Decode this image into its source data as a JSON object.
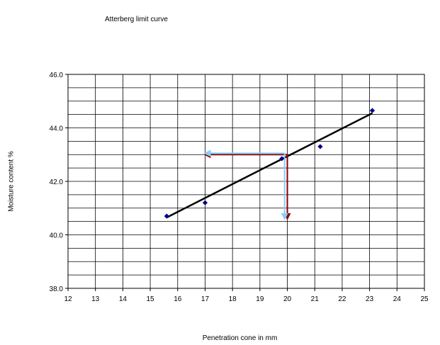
{
  "chart_data": {
    "type": "scatter",
    "title": "Atterberg limit curve",
    "xlabel": "Penetration cone in mm",
    "ylabel": "Moisture content %",
    "xlim": [
      12,
      25
    ],
    "ylim": [
      38.0,
      46.0
    ],
    "x_ticks": [
      "12",
      "13",
      "14",
      "15",
      "16",
      "17",
      "18",
      "19",
      "20",
      "21",
      "22",
      "23",
      "24",
      "25"
    ],
    "y_ticks": [
      "38.0",
      "40.0",
      "42.0",
      "44.0",
      "46.0"
    ],
    "grid": true,
    "series": [
      {
        "points": [
          {
            "x": 15.6,
            "y": 40.7
          },
          {
            "x": 17.0,
            "y": 41.2
          },
          {
            "x": 19.8,
            "y": 42.85
          },
          {
            "x": 21.2,
            "y": 43.3
          },
          {
            "x": 23.1,
            "y": 44.65
          }
        ],
        "marker_color": "#00008b"
      }
    ],
    "trendline": {
      "x1": 15.6,
      "x2": 23.1,
      "y1": 40.65,
      "y2": 44.55,
      "color": "#000000"
    },
    "annotations": {
      "red_arrows": {
        "color": "#8b0000",
        "corner": {
          "x": 20.0,
          "y": 43.0
        },
        "left_to_x": 17.0,
        "down_to_y": 40.6
      },
      "blue_arrows": {
        "color": "#87cefa",
        "corner": {
          "x": 19.9,
          "y": 43.05
        },
        "left_to_x": 17.0,
        "down_to_y": 40.6
      }
    }
  }
}
